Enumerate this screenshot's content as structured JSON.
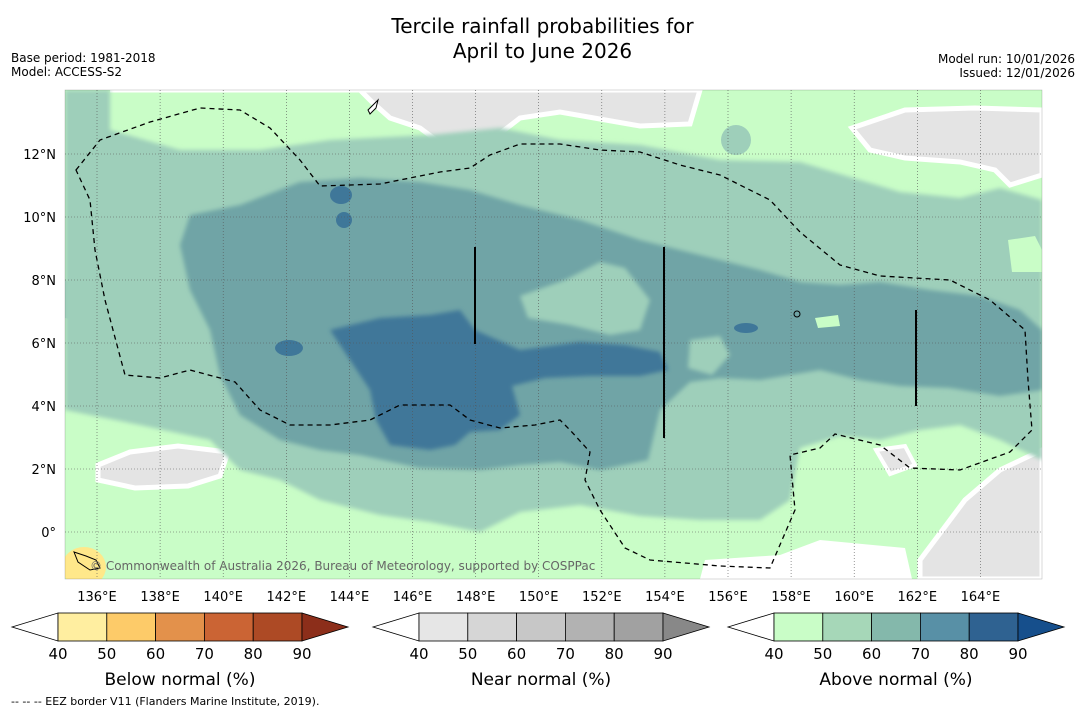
{
  "title_line1": "Tercile rainfall probabilities for",
  "title_line2": "April to June 2026",
  "base_period": "Base period: 1981-2018",
  "model": "Model: ACCESS-S2",
  "model_run": "Model run: 10/01/2026",
  "issued": "Issued: 12/01/2026",
  "copyright": "© Commonwealth of Australia 2026, Bureau of Meteorology, supported by COSPPac",
  "footer_note": "--  --  -- EEZ border V11 (Flanders Marine Institute, 2019).",
  "map": {
    "lon_labels": [
      "136°E",
      "138°E",
      "140°E",
      "142°E",
      "144°E",
      "146°E",
      "148°E",
      "150°E",
      "152°E",
      "154°E",
      "156°E",
      "158°E",
      "160°E",
      "162°E",
      "164°E"
    ],
    "lat_labels": [
      "12°N",
      "10°N",
      "8°N",
      "6°N",
      "4°N",
      "2°N",
      "0°"
    ]
  },
  "colorbars": [
    {
      "label": "Below normal (%)",
      "ticks": [
        "40",
        "50",
        "60",
        "70",
        "80",
        "90"
      ],
      "colors": [
        "#ffffff",
        "#ffeea0",
        "#fdcb69",
        "#e3914b",
        "#cb6434",
        "#ad4a25",
        "#8c2e1a"
      ]
    },
    {
      "label": "Near normal (%)",
      "ticks": [
        "40",
        "50",
        "60",
        "70",
        "80",
        "90"
      ],
      "colors": [
        "#ffffff",
        "#e6e6e6",
        "#d6d6d6",
        "#c7c7c7",
        "#b2b2b2",
        "#a1a1a1",
        "#888888"
      ]
    },
    {
      "label": "Above normal (%)",
      "ticks": [
        "40",
        "50",
        "60",
        "70",
        "80",
        "90"
      ],
      "colors": [
        "#ffffff",
        "#c9fdc7",
        "#a6d7b8",
        "#84b8ab",
        "#5890a6",
        "#2f6291",
        "#164f8c"
      ]
    }
  ],
  "colors": {
    "above_50": "#c9fdc7",
    "above_60": "#9ecfba",
    "above_70": "#6fa4a6",
    "above_80": "#3f7799",
    "near_40": "#e4e4e4",
    "below_50": "#ffe88a"
  }
}
